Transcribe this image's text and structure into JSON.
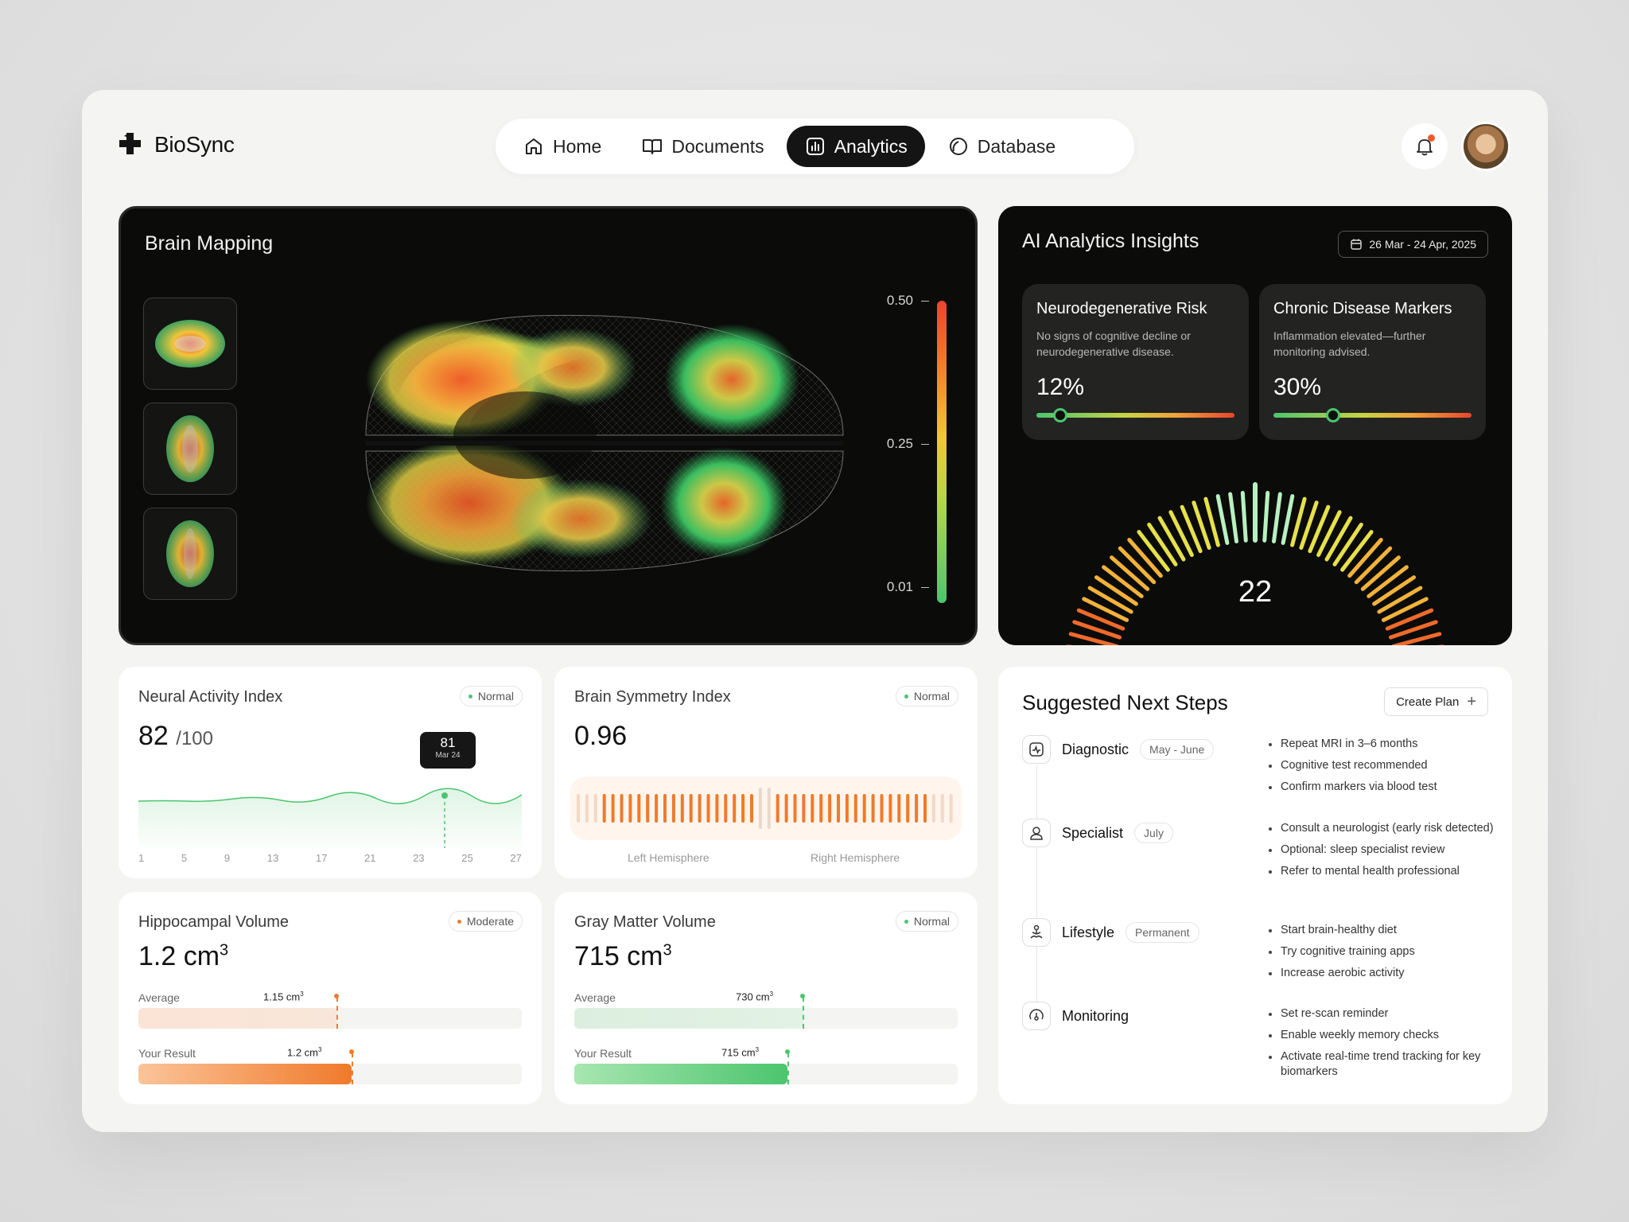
{
  "app": {
    "name": "BioSync"
  },
  "nav": {
    "items": [
      {
        "label": "Home",
        "icon": "home-icon",
        "active": false
      },
      {
        "label": "Documents",
        "icon": "book-icon",
        "active": false
      },
      {
        "label": "Analytics",
        "icon": "chart-icon",
        "active": true
      },
      {
        "label": "Database",
        "icon": "database-icon",
        "active": false
      }
    ]
  },
  "brain_mapping": {
    "title": "Brain Mapping",
    "scale_labels": [
      "0.50",
      "0.25",
      "0.01"
    ]
  },
  "ai_insights": {
    "title": "AI Analytics Insights",
    "date_range": "26 Mar - 24 Apr, 2025",
    "risks": [
      {
        "title": "Neurodegenerative Risk",
        "desc": "No signs of cognitive decline or neurodegenerative disease.",
        "value": "12%",
        "level": 0.12
      },
      {
        "title": "Chronic Disease Markers",
        "desc": "Inflammation elevated—further monitoring advised.",
        "value": "30%",
        "level": 0.3
      }
    ],
    "gauge_value": "22"
  },
  "neural": {
    "title": "Neural Activity Index",
    "badge": "Normal",
    "value": "82",
    "unit": "/100",
    "tooltip_value": "81",
    "tooltip_date": "Mar 24",
    "x_ticks": [
      "1",
      "5",
      "9",
      "13",
      "17",
      "21",
      "23",
      "25",
      "27"
    ]
  },
  "symmetry": {
    "title": "Brain Symmetry Index",
    "badge": "Normal",
    "value": "0.96",
    "left_label": "Left Hemisphere",
    "right_label": "Right Hemisphere"
  },
  "hippocampal": {
    "title": "Hippocampal Volume",
    "badge": "Moderate",
    "value": "1.2 cm",
    "sup": "3",
    "average_label": "Average",
    "average_value": "1.15 cm",
    "result_label": "Your Result",
    "result_value": "1.2 cm"
  },
  "gray_matter": {
    "title": "Gray Matter Volume",
    "badge": "Normal",
    "value": "715 cm",
    "sup": "3",
    "average_label": "Average",
    "average_value": "730 cm",
    "result_label": "Your Result",
    "result_value": "715 cm"
  },
  "steps": {
    "title": "Suggested Next Steps",
    "create_label": "Create Plan",
    "items": [
      {
        "name": "Diagnostic",
        "tag": "May - June",
        "bullets": [
          "Repeat MRI in 3–6 months",
          "Cognitive test recommended",
          "Confirm markers via blood test"
        ]
      },
      {
        "name": "Specialist",
        "tag": "July",
        "bullets": [
          "Consult a neurologist (early risk detected)",
          "Optional: sleep specialist review",
          "Refer to mental health professional"
        ]
      },
      {
        "name": "Lifestyle",
        "tag": "Permanent",
        "bullets": [
          "Start brain-healthy diet",
          "Try cognitive training apps",
          "Increase aerobic activity"
        ]
      },
      {
        "name": "Monitoring",
        "tag": "",
        "bullets": [
          "Set re-scan reminder",
          "Enable weekly memory checks",
          "Activate real-time trend tracking for key biomarkers"
        ]
      }
    ]
  },
  "colors": {
    "accent": "#141414",
    "green": "#4cc56e",
    "orange": "#f07a2b",
    "red": "#e9452c"
  }
}
